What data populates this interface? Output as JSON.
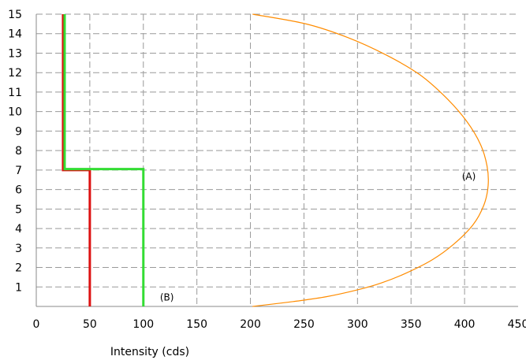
{
  "chart_data": {
    "type": "line",
    "title": "",
    "xlabel": "Intensity (cds)",
    "ylabel": "",
    "xlim": [
      0,
      450
    ],
    "ylim": [
      0,
      15
    ],
    "xticks": [
      0,
      50,
      100,
      150,
      200,
      250,
      300,
      350,
      400,
      450
    ],
    "yticks": [
      1,
      2,
      3,
      4,
      5,
      6,
      7,
      8,
      9,
      10,
      11,
      12,
      13,
      14,
      15
    ],
    "grid": true,
    "series": [
      {
        "name": "",
        "color": "#ff8c00",
        "points": [
          [
            202,
            0
          ],
          [
            240,
            0.25
          ],
          [
            271,
            0.5
          ],
          [
            300,
            0.85
          ],
          [
            322,
            1.2
          ],
          [
            345,
            1.7
          ],
          [
            370,
            2.4
          ],
          [
            390,
            3.2
          ],
          [
            408,
            4.2
          ],
          [
            418,
            5.2
          ],
          [
            422,
            6.2
          ],
          [
            421,
            7.2
          ],
          [
            415,
            8.3
          ],
          [
            402,
            9.5
          ],
          [
            383,
            10.7
          ],
          [
            358,
            11.9
          ],
          [
            327,
            12.9
          ],
          [
            291,
            13.8
          ],
          [
            252,
            14.5
          ],
          [
            202,
            15
          ]
        ]
      },
      {
        "name": "",
        "color": "#dd1111",
        "points": [
          [
            50,
            0
          ],
          [
            50,
            7
          ],
          [
            25,
            7
          ],
          [
            25,
            15
          ]
        ]
      },
      {
        "name": "",
        "color": "#33dd33",
        "points": [
          [
            100,
            0
          ],
          [
            100,
            7.05
          ],
          [
            26.5,
            7.05
          ],
          [
            26.5,
            15
          ]
        ]
      }
    ],
    "annotations": [
      {
        "text": "(A)",
        "x": 404,
        "y": 6.5
      },
      {
        "text": "(B)",
        "x": 122,
        "y": 0.3
      }
    ]
  }
}
